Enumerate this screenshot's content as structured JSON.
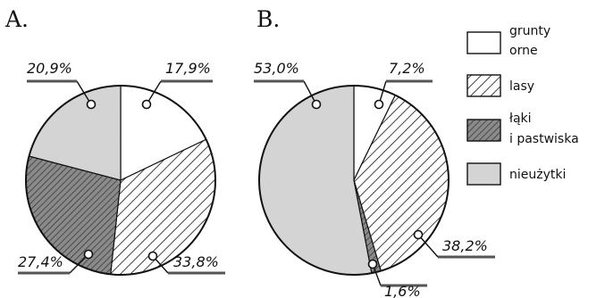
{
  "legend": [
    {
      "key": "grunty",
      "lines": [
        "grunty",
        "orne"
      ],
      "fill": "white"
    },
    {
      "key": "lasy",
      "lines": [
        "lasy"
      ],
      "fill": "hatch-light"
    },
    {
      "key": "laki",
      "lines": [
        "łąki",
        "i pastwiska"
      ],
      "fill": "hatch-dark"
    },
    {
      "key": "nieuzytki",
      "lines": [
        "nieużytki"
      ],
      "fill": "#d4d4d4"
    }
  ],
  "colors": {
    "white": "#ffffff",
    "hatch_light_bg": "#ffffff",
    "hatch_dark_bg": "#8a8a8a",
    "nieuzytki": "#d4d4d4",
    "line": "#111111"
  },
  "chart_data": [
    {
      "type": "pie",
      "panel": "A.",
      "categories": [
        "grunty orne",
        "lasy",
        "łąki i pastwiska",
        "nieużytki"
      ],
      "values": [
        17.9,
        33.8,
        27.4,
        20.9
      ],
      "value_labels": [
        "17,9%",
        "33,8%",
        "27,4%",
        "20,9%"
      ],
      "start": "12 o'clock",
      "direction": "clockwise"
    },
    {
      "type": "pie",
      "panel": "B.",
      "categories": [
        "grunty orne",
        "lasy",
        "łąki i pastwiska",
        "nieużytki"
      ],
      "values": [
        7.2,
        38.2,
        1.6,
        53.0
      ],
      "value_labels": [
        "7,2%",
        "38,2%",
        "1,6%",
        "53,0%"
      ],
      "start": "12 o'clock",
      "direction": "clockwise"
    }
  ]
}
